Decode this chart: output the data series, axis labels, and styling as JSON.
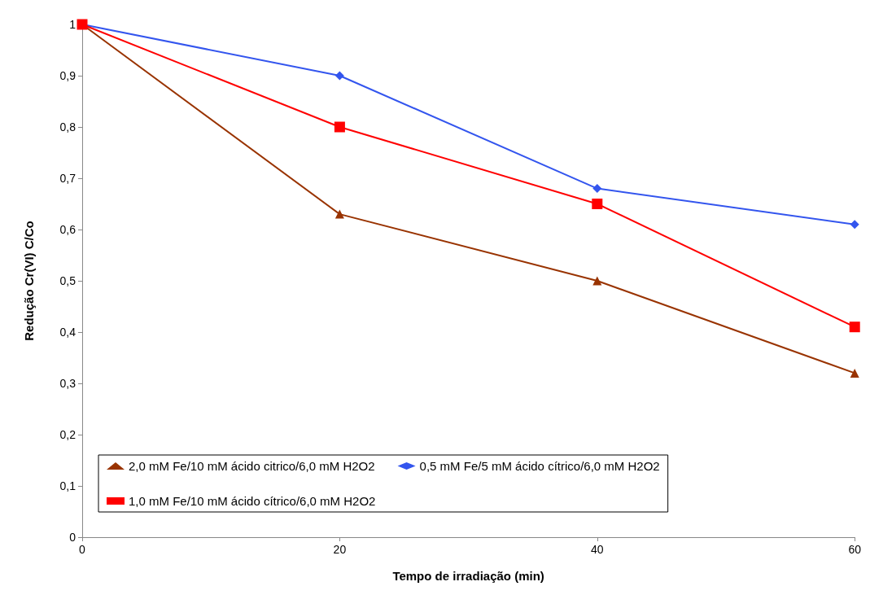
{
  "chart_data": {
    "type": "line",
    "xlabel": "Tempo de irradiação (min)",
    "ylabel": "Redução Cr(VI) C/Co",
    "x": [
      0,
      20,
      40,
      60
    ],
    "xlim": [
      0,
      60
    ],
    "xticks": [
      0,
      20,
      40,
      60
    ],
    "ylim": [
      0,
      1
    ],
    "yticks": [
      0,
      {
        "value": 0.1,
        "label": "0,1"
      },
      {
        "value": 0.2,
        "label": "0,2"
      },
      {
        "value": 0.3,
        "label": "0,3"
      },
      {
        "value": 0.4,
        "label": "0,4"
      },
      {
        "value": 0.5,
        "label": "0,5"
      },
      {
        "value": 0.6,
        "label": "0,6"
      },
      {
        "value": 0.7,
        "label": "0,7"
      },
      {
        "value": 0.8,
        "label": "0,8"
      },
      {
        "value": 0.9,
        "label": "0,9"
      },
      1
    ],
    "grid": false,
    "legend": "bottom left",
    "line_style": "solid",
    "series": [
      {
        "name": "2,0 mM Fe/10 mM ácido citrico/6,0 mM H2O2",
        "color": "#993300",
        "marker": "triangle",
        "values": [
          1,
          0.63,
          0.5,
          0.32
        ]
      },
      {
        "name": "0,5 mM Fe/5 mM ácido cítrico/6,0 mM H2O2",
        "color": "#3355ee",
        "marker": "diamond",
        "values": [
          1,
          0.9,
          0.68,
          0.61
        ]
      },
      {
        "name": "1,0 mM Fe/10 mM ácido cítrico/6,0 mM H2O2",
        "color": "#ff0000",
        "marker": "square",
        "values": [
          1,
          0.8,
          0.65,
          0.41
        ]
      }
    ]
  }
}
